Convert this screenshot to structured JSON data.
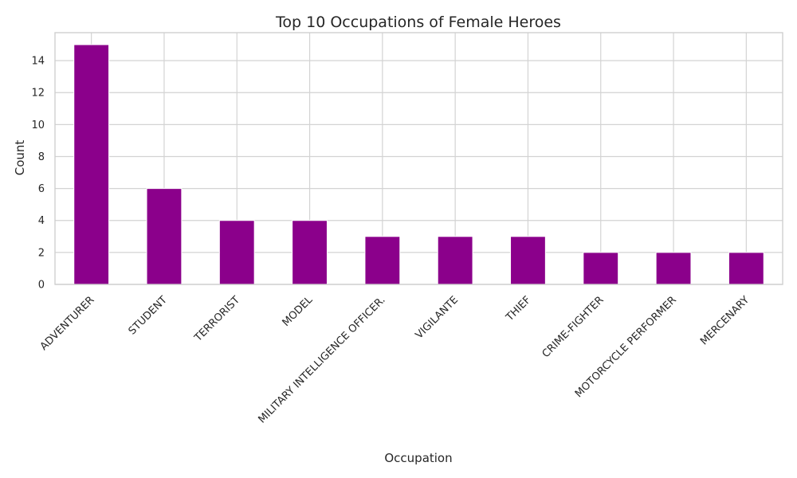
{
  "chart_data": {
    "type": "bar",
    "title": "Top 10 Occupations of Female Heroes",
    "xlabel": "Occupation",
    "ylabel": "Count",
    "categories": [
      "ADVENTURER",
      "STUDENT",
      "TERRORIST",
      "MODEL",
      "MILITARY INTELLIGENCE OFFICER.",
      "VIGILANTE",
      "THIEF",
      "CRIME-FIGHTER",
      "MOTORCYCLE PERFORMER",
      "MERCENARY"
    ],
    "values": [
      15,
      6,
      4,
      4,
      3,
      3,
      3,
      2,
      2,
      2
    ],
    "ylim": [
      0,
      15.75
    ],
    "yticks": [
      0,
      2,
      4,
      6,
      8,
      10,
      12,
      14
    ],
    "grid": true,
    "legend": "none",
    "bar_color": "#8b008b",
    "grid_color": "#d3d3d3"
  }
}
